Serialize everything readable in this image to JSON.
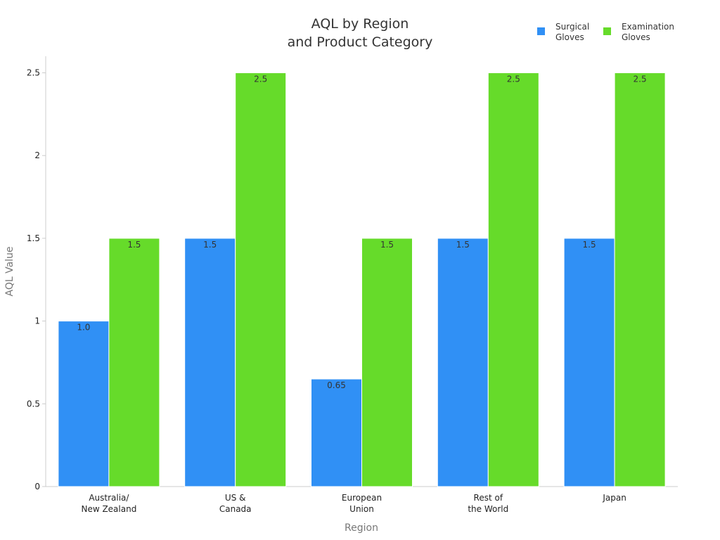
{
  "chart_data": {
    "type": "bar",
    "title_lines": [
      "AQL by Region",
      "and Product Category"
    ],
    "xlabel": "Region",
    "ylabel": "AQL Value",
    "ylim": [
      0,
      2.6
    ],
    "yticks": [
      {
        "value": 0,
        "label": "0"
      },
      {
        "value": 0.5,
        "label": "0.5"
      },
      {
        "value": 1,
        "label": "1"
      },
      {
        "value": 1.5,
        "label": "1.5"
      },
      {
        "value": 2,
        "label": "2"
      },
      {
        "value": 2.5,
        "label": "2.5"
      }
    ],
    "categories": [
      [
        "Australia/",
        "New Zealand"
      ],
      [
        "US &",
        "Canada"
      ],
      [
        "European",
        "Union"
      ],
      [
        "Rest of",
        "the World"
      ],
      [
        "Japan"
      ]
    ],
    "series": [
      {
        "name_lines": [
          "Surgical",
          "Gloves"
        ],
        "color": "#3090F5",
        "values": [
          1.0,
          1.5,
          0.65,
          1.5,
          1.5
        ],
        "labels": [
          "1.0",
          "1.5",
          "0.65",
          "1.5",
          "1.5"
        ]
      },
      {
        "name_lines": [
          "Examination",
          "Gloves"
        ],
        "color": "#66DB2A",
        "values": [
          1.5,
          2.5,
          1.5,
          2.5,
          2.5
        ],
        "labels": [
          "1.5",
          "2.5",
          "1.5",
          "2.5",
          "2.5"
        ]
      }
    ],
    "legend_position": "top-right",
    "grid": false
  }
}
